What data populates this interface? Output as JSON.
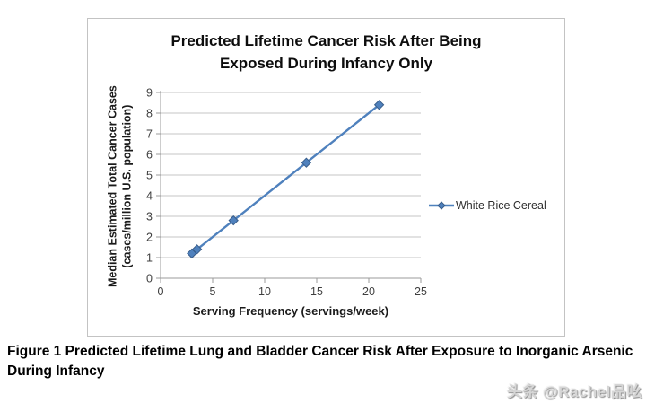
{
  "page": {
    "caption_line1": "Figure 1 Predicted Lifetime Lung and Bladder Cancer Risk After Exposure to Inorganic Arsenic",
    "caption_line2": "During Infancy",
    "watermark": "头条 @Rachel品吆"
  },
  "chart_data": {
    "type": "line",
    "title_lines": [
      "Predicted Lifetime Cancer Risk After Being",
      "Exposed During Infancy Only"
    ],
    "xlabel": "Serving Frequency (servings/week)",
    "ylabel_lines": [
      "Median Estimated Total Cancer Cases",
      "(cases/million U.S. population)"
    ],
    "xlim": [
      0,
      25
    ],
    "ylim": [
      0,
      9
    ],
    "x_ticks": [
      0,
      5,
      10,
      15,
      20,
      25
    ],
    "y_ticks": [
      0,
      1,
      2,
      3,
      4,
      5,
      6,
      7,
      8,
      9
    ],
    "grid": "horizontal",
    "legend_position": "right",
    "series": [
      {
        "name": "White Rice Cereal",
        "color": "#4F81BD",
        "marker_stroke": "#385D8A",
        "marker": "diamond",
        "x": [
          3,
          3.5,
          7,
          14,
          21
        ],
        "y": [
          1.2,
          1.4,
          2.8,
          5.6,
          8.4
        ]
      }
    ],
    "palette": {
      "gridline": "#c6c6c6",
      "axis": "#9b9b9b",
      "tick_label": "#3f3f3f"
    }
  }
}
